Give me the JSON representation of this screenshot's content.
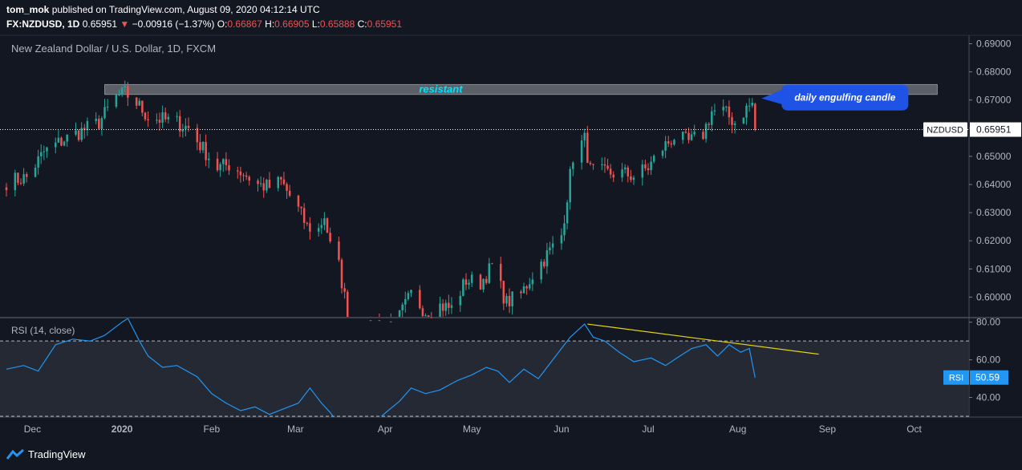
{
  "header": {
    "author": "tom_mok",
    "published_text": "published on TradingView.com, August 09, 2020 04:12:14 UTC",
    "symbol": "FX:NZDUSD, 1D",
    "last": "0.65951",
    "change_arrow": "▼",
    "change": "−0.00916 (−1.37%)",
    "open_label": "O:",
    "open": "0.66867",
    "high_label": "H:",
    "high": "0.66905",
    "low_label": "L:",
    "low": "0.65888",
    "close_label": "C:",
    "close": "0.65951"
  },
  "footer": {
    "brand": "TradingView"
  },
  "colors": {
    "background": "#131722",
    "up": "#26a69a",
    "down": "#ef5350",
    "rsi_line": "#2196f3",
    "trendline": "#e6d80f",
    "annotation": "#1e53e5"
  },
  "chart_data": [
    {
      "type": "candlestick",
      "title": "New Zealand Dollar / U.S. Dollar, 1D, FXCM",
      "y_ticks": [
        "0.69000",
        "0.68000",
        "0.67000",
        "0.66000",
        "0.65000",
        "0.64000",
        "0.63000",
        "0.62000",
        "0.61000",
        "0.60000"
      ],
      "ylim": [
        0.593,
        0.693
      ],
      "x_ticks": [
        "Dec",
        "2020",
        "Feb",
        "Mar",
        "Apr",
        "May",
        "Jun",
        "Jul",
        "Aug",
        "Sep",
        "Oct"
      ],
      "x_tick_dates": [
        "2019-12-01",
        "2020-01-01",
        "2020-02-01",
        "2020-03-01",
        "2020-04-01",
        "2020-05-01",
        "2020-06-01",
        "2020-07-01",
        "2020-08-01",
        "2020-09-01",
        "2020-10-01"
      ],
      "xlim": [
        "2019-11-22",
        "2020-10-20"
      ],
      "last_price_label": "NZDUSD",
      "last_price": "0.65951",
      "close_path": [
        [
          "2019-11-22",
          0.641
        ],
        [
          "2019-11-29",
          0.6425
        ],
        [
          "2019-12-05",
          0.6515
        ],
        [
          "2019-12-12",
          0.656
        ],
        [
          "2019-12-18",
          0.659
        ],
        [
          "2019-12-24",
          0.662
        ],
        [
          "2019-12-30",
          0.671
        ],
        [
          "2020-01-02",
          0.6725
        ],
        [
          "2020-01-06",
          0.669
        ],
        [
          "2020-01-10",
          0.664
        ],
        [
          "2020-01-15",
          0.663
        ],
        [
          "2020-01-20",
          0.662
        ],
        [
          "2020-01-24",
          0.66
        ],
        [
          "2020-01-28",
          0.654
        ],
        [
          "2020-02-03",
          0.646
        ],
        [
          "2020-02-07",
          0.647
        ],
        [
          "2020-02-12",
          0.644
        ],
        [
          "2020-02-17",
          0.64
        ],
        [
          "2020-02-21",
          0.639
        ],
        [
          "2020-02-25",
          0.641
        ],
        [
          "2020-03-02",
          0.631
        ],
        [
          "2020-03-05",
          0.625
        ],
        [
          "2020-03-09",
          0.624
        ],
        [
          "2020-03-11",
          0.629
        ],
        [
          "2020-03-13",
          0.618
        ],
        [
          "2020-03-16",
          0.611
        ],
        [
          "2020-03-18",
          0.6
        ],
        [
          "2020-03-20",
          0.58
        ],
        [
          "2020-03-24",
          0.583
        ],
        [
          "2020-03-27",
          0.591
        ],
        [
          "2020-04-01",
          0.586
        ],
        [
          "2020-04-06",
          0.593
        ],
        [
          "2020-04-10",
          0.601
        ],
        [
          "2020-04-15",
          0.595
        ],
        [
          "2020-04-20",
          0.597
        ],
        [
          "2020-04-24",
          0.596
        ],
        [
          "2020-04-29",
          0.606
        ],
        [
          "2020-05-04",
          0.605
        ],
        [
          "2020-05-08",
          0.611
        ],
        [
          "2020-05-13",
          0.598
        ],
        [
          "2020-05-18",
          0.601
        ],
        [
          "2020-05-22",
          0.608
        ],
        [
          "2020-05-27",
          0.615
        ],
        [
          "2020-06-01",
          0.622
        ],
        [
          "2020-06-05",
          0.65
        ],
        [
          "2020-06-09",
          0.656
        ],
        [
          "2020-06-11",
          0.645
        ],
        [
          "2020-06-16",
          0.644
        ],
        [
          "2020-06-22",
          0.644
        ],
        [
          "2020-06-26",
          0.643
        ],
        [
          "2020-07-01",
          0.646
        ],
        [
          "2020-07-06",
          0.653
        ],
        [
          "2020-07-10",
          0.657
        ],
        [
          "2020-07-15",
          0.655
        ],
        [
          "2020-07-20",
          0.658
        ],
        [
          "2020-07-23",
          0.666
        ],
        [
          "2020-07-27",
          0.666
        ],
        [
          "2020-07-31",
          0.662
        ],
        [
          "2020-08-04",
          0.667
        ],
        [
          "2020-08-06",
          0.6687
        ],
        [
          "2020-08-07",
          0.6595
        ]
      ],
      "resistance_zone": {
        "label": "resistant",
        "from": "2019-12-26",
        "to": "2020-10-09",
        "low": 0.672,
        "high": 0.6755
      },
      "annotation": {
        "text": "daily engulfing candle",
        "date": "2020-08-07",
        "price": 0.67
      }
    },
    {
      "type": "line",
      "title": "RSI (14, close)",
      "y_ticks": [
        "80.00",
        "60.00",
        "40.00"
      ],
      "ylim": [
        30,
        82
      ],
      "levels": [
        70,
        30
      ],
      "series_label": "RSI",
      "last_value": "50.59",
      "points": [
        [
          "2019-11-22",
          55
        ],
        [
          "2019-11-28",
          57
        ],
        [
          "2019-12-03",
          54
        ],
        [
          "2019-12-09",
          68
        ],
        [
          "2019-12-15",
          71
        ],
        [
          "2019-12-21",
          70
        ],
        [
          "2019-12-26",
          73
        ],
        [
          "2020-01-01",
          80
        ],
        [
          "2020-01-03",
          82
        ],
        [
          "2020-01-07",
          70
        ],
        [
          "2020-01-10",
          62
        ],
        [
          "2020-01-15",
          56
        ],
        [
          "2020-01-20",
          57
        ],
        [
          "2020-01-27",
          51
        ],
        [
          "2020-02-01",
          42
        ],
        [
          "2020-02-06",
          37
        ],
        [
          "2020-02-11",
          33
        ],
        [
          "2020-02-16",
          35
        ],
        [
          "2020-02-21",
          31
        ],
        [
          "2020-02-26",
          34
        ],
        [
          "2020-03-02",
          37
        ],
        [
          "2020-03-06",
          45
        ],
        [
          "2020-03-10",
          37
        ],
        [
          "2020-03-13",
          32
        ],
        [
          "2020-03-18",
          22
        ],
        [
          "2020-03-21",
          24
        ],
        [
          "2020-03-27",
          25
        ],
        [
          "2020-04-02",
          33
        ],
        [
          "2020-04-06",
          38
        ],
        [
          "2020-04-10",
          45
        ],
        [
          "2020-04-15",
          42
        ],
        [
          "2020-04-20",
          44
        ],
        [
          "2020-04-26",
          49
        ],
        [
          "2020-05-01",
          52
        ],
        [
          "2020-05-06",
          56
        ],
        [
          "2020-05-10",
          54
        ],
        [
          "2020-05-14",
          48
        ],
        [
          "2020-05-19",
          55
        ],
        [
          "2020-05-24",
          50
        ],
        [
          "2020-05-29",
          60
        ],
        [
          "2020-06-04",
          72
        ],
        [
          "2020-06-09",
          79
        ],
        [
          "2020-06-12",
          72
        ],
        [
          "2020-06-16",
          70
        ],
        [
          "2020-06-21",
          64
        ],
        [
          "2020-06-26",
          59
        ],
        [
          "2020-07-02",
          61
        ],
        [
          "2020-07-07",
          57
        ],
        [
          "2020-07-12",
          62
        ],
        [
          "2020-07-16",
          66
        ],
        [
          "2020-07-21",
          68
        ],
        [
          "2020-07-25",
          62
        ],
        [
          "2020-07-29",
          68
        ],
        [
          "2020-08-02",
          64
        ],
        [
          "2020-08-05",
          66
        ],
        [
          "2020-08-07",
          50.59
        ]
      ],
      "trendline": [
        [
          "2020-06-10",
          79
        ],
        [
          "2020-08-29",
          63
        ]
      ]
    }
  ]
}
